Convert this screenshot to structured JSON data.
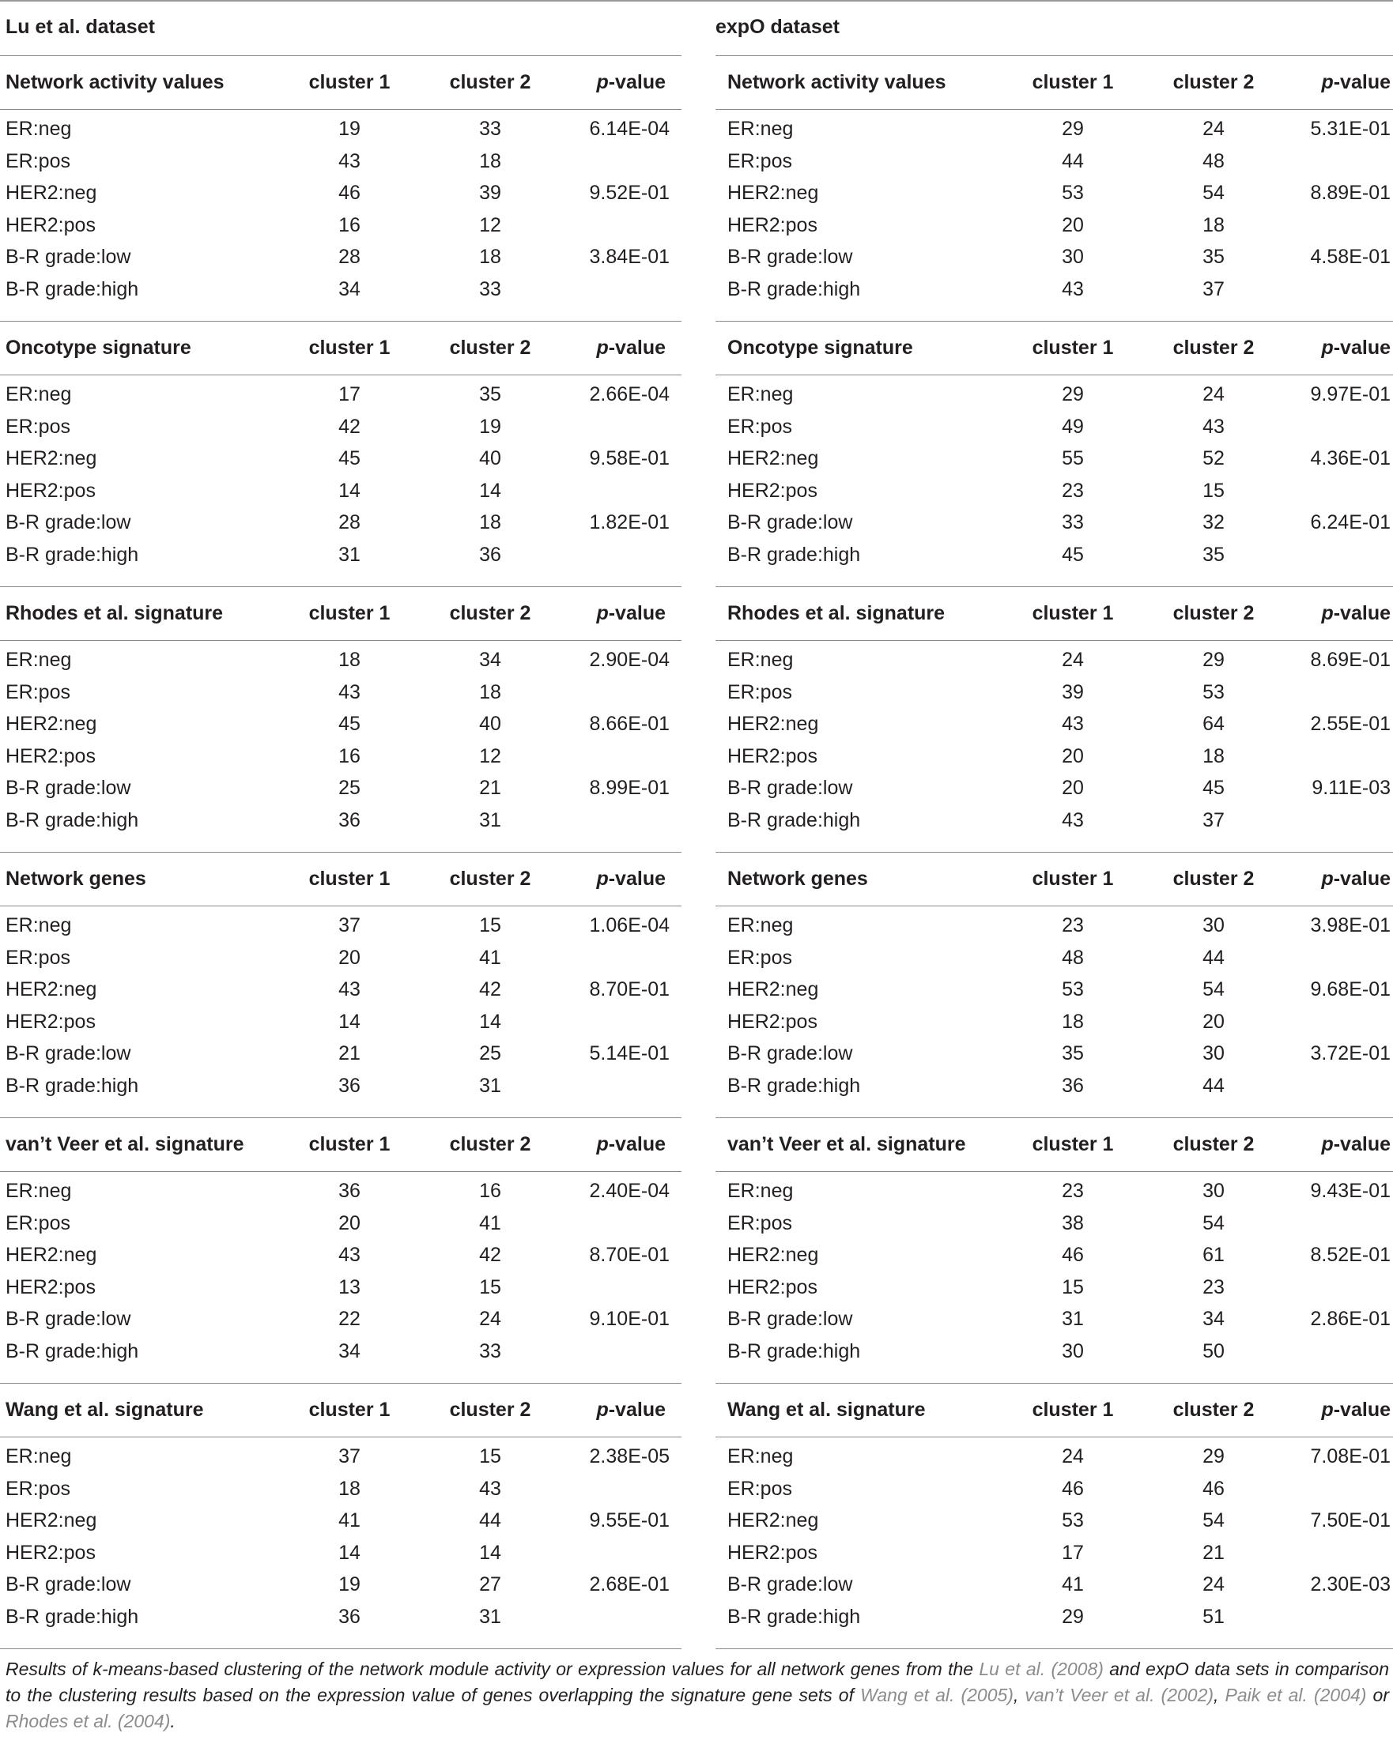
{
  "header_labels": {
    "cluster1": "cluster 1",
    "cluster2": "cluster 2",
    "pvalue_p": "p",
    "pvalue_rest": "-value"
  },
  "left": {
    "title": "Lu et al. dataset",
    "sections": [
      {
        "name": "Network activity values",
        "rows": [
          [
            "ER:neg",
            "19",
            "33",
            "6.14E-04"
          ],
          [
            "ER:pos",
            "43",
            "18",
            ""
          ],
          [
            "HER2:neg",
            "46",
            "39",
            "9.52E-01"
          ],
          [
            "HER2:pos",
            "16",
            "12",
            ""
          ],
          [
            "B-R grade:low",
            "28",
            "18",
            "3.84E-01"
          ],
          [
            "B-R grade:high",
            "34",
            "33",
            ""
          ]
        ]
      },
      {
        "name": "Oncotype signature",
        "rows": [
          [
            "ER:neg",
            "17",
            "35",
            "2.66E-04"
          ],
          [
            "ER:pos",
            "42",
            "19",
            ""
          ],
          [
            "HER2:neg",
            "45",
            "40",
            "9.58E-01"
          ],
          [
            "HER2:pos",
            "14",
            "14",
            ""
          ],
          [
            "B-R grade:low",
            "28",
            "18",
            "1.82E-01"
          ],
          [
            "B-R grade:high",
            "31",
            "36",
            ""
          ]
        ]
      },
      {
        "name": "Rhodes et al. signature",
        "rows": [
          [
            "ER:neg",
            "18",
            "34",
            "2.90E-04"
          ],
          [
            "ER:pos",
            "43",
            "18",
            ""
          ],
          [
            "HER2:neg",
            "45",
            "40",
            "8.66E-01"
          ],
          [
            "HER2:pos",
            "16",
            "12",
            ""
          ],
          [
            "B-R grade:low",
            "25",
            "21",
            "8.99E-01"
          ],
          [
            "B-R grade:high",
            "36",
            "31",
            ""
          ]
        ]
      },
      {
        "name": "Network genes",
        "rows": [
          [
            "ER:neg",
            "37",
            "15",
            "1.06E-04"
          ],
          [
            "ER:pos",
            "20",
            "41",
            ""
          ],
          [
            "HER2:neg",
            "43",
            "42",
            "8.70E-01"
          ],
          [
            "HER2:pos",
            "14",
            "14",
            ""
          ],
          [
            "B-R grade:low",
            "21",
            "25",
            "5.14E-01"
          ],
          [
            "B-R grade:high",
            "36",
            "31",
            ""
          ]
        ]
      },
      {
        "name": "van’t Veer et al. signature",
        "rows": [
          [
            "ER:neg",
            "36",
            "16",
            "2.40E-04"
          ],
          [
            "ER:pos",
            "20",
            "41",
            ""
          ],
          [
            "HER2:neg",
            "43",
            "42",
            "8.70E-01"
          ],
          [
            "HER2:pos",
            "13",
            "15",
            ""
          ],
          [
            "B-R grade:low",
            "22",
            "24",
            "9.10E-01"
          ],
          [
            "B-R grade:high",
            "34",
            "33",
            ""
          ]
        ]
      },
      {
        "name": "Wang et al. signature",
        "rows": [
          [
            "ER:neg",
            "37",
            "15",
            "2.38E-05"
          ],
          [
            "ER:pos",
            "18",
            "43",
            ""
          ],
          [
            "HER2:neg",
            "41",
            "44",
            "9.55E-01"
          ],
          [
            "HER2:pos",
            "14",
            "14",
            ""
          ],
          [
            "B-R grade:low",
            "19",
            "27",
            "2.68E-01"
          ],
          [
            "B-R grade:high",
            "36",
            "31",
            ""
          ]
        ]
      }
    ]
  },
  "right": {
    "title": "expO dataset",
    "sections": [
      {
        "name": "Network activity values",
        "rows": [
          [
            "ER:neg",
            "29",
            "24",
            "5.31E-01"
          ],
          [
            "ER:pos",
            "44",
            "48",
            ""
          ],
          [
            "HER2:neg",
            "53",
            "54",
            "8.89E-01"
          ],
          [
            "HER2:pos",
            "20",
            "18",
            ""
          ],
          [
            "B-R grade:low",
            "30",
            "35",
            "4.58E-01"
          ],
          [
            "B-R grade:high",
            "43",
            "37",
            ""
          ]
        ]
      },
      {
        "name": "Oncotype signature",
        "rows": [
          [
            "ER:neg",
            "29",
            "24",
            "9.97E-01"
          ],
          [
            "ER:pos",
            "49",
            "43",
            ""
          ],
          [
            "HER2:neg",
            "55",
            "52",
            "4.36E-01"
          ],
          [
            "HER2:pos",
            "23",
            "15",
            ""
          ],
          [
            "B-R grade:low",
            "33",
            "32",
            "6.24E-01"
          ],
          [
            "B-R grade:high",
            "45",
            "35",
            ""
          ]
        ]
      },
      {
        "name": "Rhodes et al. signature",
        "rows": [
          [
            "ER:neg",
            "24",
            "29",
            "8.69E-01"
          ],
          [
            "ER:pos",
            "39",
            "53",
            ""
          ],
          [
            "HER2:neg",
            "43",
            "64",
            "2.55E-01"
          ],
          [
            "HER2:pos",
            "20",
            "18",
            ""
          ],
          [
            "B-R grade:low",
            "20",
            "45",
            "9.11E-03"
          ],
          [
            "B-R grade:high",
            "43",
            "37",
            ""
          ]
        ]
      },
      {
        "name": "Network genes",
        "rows": [
          [
            "ER:neg",
            "23",
            "30",
            "3.98E-01"
          ],
          [
            "ER:pos",
            "48",
            "44",
            ""
          ],
          [
            "HER2:neg",
            "53",
            "54",
            "9.68E-01"
          ],
          [
            "HER2:pos",
            "18",
            "20",
            ""
          ],
          [
            "B-R grade:low",
            "35",
            "30",
            "3.72E-01"
          ],
          [
            "B-R grade:high",
            "36",
            "44",
            ""
          ]
        ]
      },
      {
        "name": "van’t Veer et al. signature",
        "rows": [
          [
            "ER:neg",
            "23",
            "30",
            "9.43E-01"
          ],
          [
            "ER:pos",
            "38",
            "54",
            ""
          ],
          [
            "HER2:neg",
            "46",
            "61",
            "8.52E-01"
          ],
          [
            "HER2:pos",
            "15",
            "23",
            ""
          ],
          [
            "B-R grade:low",
            "31",
            "34",
            "2.86E-01"
          ],
          [
            "B-R grade:high",
            "30",
            "50",
            ""
          ]
        ]
      },
      {
        "name": "Wang et al. signature",
        "rows": [
          [
            "ER:neg",
            "24",
            "29",
            "7.08E-01"
          ],
          [
            "ER:pos",
            "46",
            "46",
            ""
          ],
          [
            "HER2:neg",
            "53",
            "54",
            "7.50E-01"
          ],
          [
            "HER2:pos",
            "17",
            "21",
            ""
          ],
          [
            "B-R grade:low",
            "41",
            "24",
            "2.30E-03"
          ],
          [
            "B-R grade:high",
            "29",
            "51",
            ""
          ]
        ]
      }
    ]
  },
  "caption": {
    "part1": "Results of k-means-based clustering of the network module activity or expression values for all network genes from the ",
    "ref_lu": "Lu et al. (2008)",
    "part2": " and expO data sets in comparison to the clustering results based on the expression value of genes overlapping the signature gene sets of ",
    "ref_wang": "Wang et al. (2005)",
    "sep1": ", ",
    "ref_vantveer": "van’t Veer et al. (2002)",
    "sep2": ", ",
    "ref_paik": "Paik et al. (2004)",
    "sep3": " or ",
    "ref_rhodes": "Rhodes et al. (2004)",
    "end": "."
  }
}
